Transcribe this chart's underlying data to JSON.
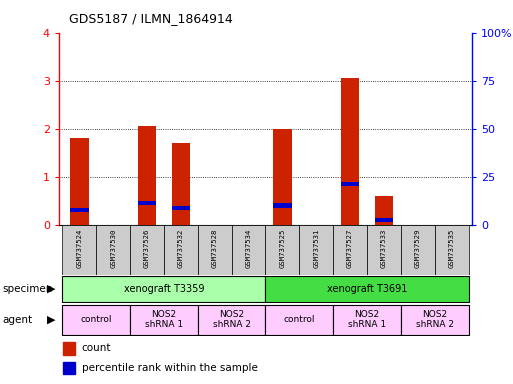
{
  "title": "GDS5187 / ILMN_1864914",
  "samples": [
    "GSM737524",
    "GSM737530",
    "GSM737526",
    "GSM737532",
    "GSM737528",
    "GSM737534",
    "GSM737525",
    "GSM737531",
    "GSM737527",
    "GSM737533",
    "GSM737529",
    "GSM737535"
  ],
  "red_values": [
    1.8,
    0.0,
    2.05,
    1.7,
    0.0,
    0.0,
    2.0,
    0.0,
    3.05,
    0.6,
    0.0,
    0.0
  ],
  "blue_values": [
    0.3,
    0.0,
    0.45,
    0.35,
    0.0,
    0.0,
    0.4,
    0.0,
    0.85,
    0.1,
    0.0,
    0.0
  ],
  "ylim_left": [
    0,
    4
  ],
  "ylim_right": [
    0,
    100
  ],
  "yticks_left": [
    0,
    1,
    2,
    3,
    4
  ],
  "yticks_right": [
    0,
    25,
    50,
    75,
    100
  ],
  "ytick_labels_right": [
    "0",
    "25",
    "50",
    "75",
    "100%"
  ],
  "specimen_groups": [
    {
      "label": "xenograft T3359",
      "start": 0,
      "end": 6,
      "color": "#aaffaa"
    },
    {
      "label": "xenograft T3691",
      "start": 6,
      "end": 12,
      "color": "#44dd44"
    }
  ],
  "agent_groups": [
    {
      "label": "control",
      "start": 0,
      "end": 2,
      "color": "#ffccff"
    },
    {
      "label": "NOS2\nshRNA 1",
      "start": 2,
      "end": 4,
      "color": "#ffccff"
    },
    {
      "label": "NOS2\nshRNA 2",
      "start": 4,
      "end": 6,
      "color": "#ffccff"
    },
    {
      "label": "control",
      "start": 6,
      "end": 8,
      "color": "#ffccff"
    },
    {
      "label": "NOS2\nshRNA 1",
      "start": 8,
      "end": 10,
      "color": "#ffccff"
    },
    {
      "label": "NOS2\nshRNA 2",
      "start": 10,
      "end": 12,
      "color": "#ffccff"
    }
  ],
  "bar_color": "#cc2200",
  "dot_color": "#0000cc",
  "bar_width": 0.55,
  "background_color": "#ffffff",
  "specimen_label": "specimen",
  "agent_label": "agent",
  "legend_count": "count",
  "legend_pct": "percentile rank within the sample"
}
